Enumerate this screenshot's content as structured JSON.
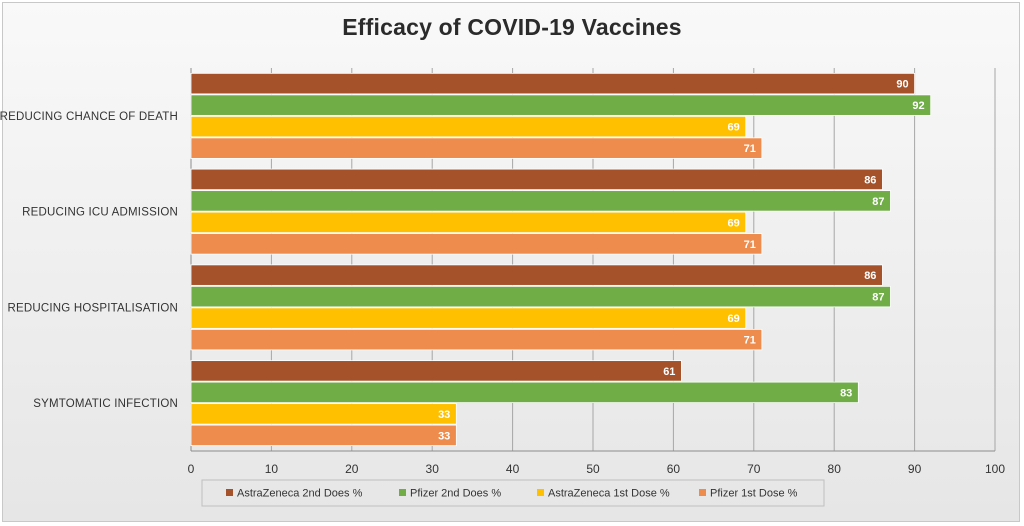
{
  "chart_data": {
    "type": "bar",
    "orientation": "horizontal",
    "title": "Efficacy of COVID-19 Vaccines",
    "xlabel": "",
    "ylabel": "",
    "categories": [
      "SYMTOMATIC INFECTION",
      "REDUCING HOSPITALISATION",
      "REDUCING ICU ADMISSION",
      "REDUCING CHANCE OF DEATH"
    ],
    "series": [
      {
        "name": "AstraZeneca 2nd Does  %",
        "color": "#a5522a",
        "values": [
          61,
          86,
          86,
          90
        ]
      },
      {
        "name": "Pfizer 2nd Does  %",
        "color": "#70ad47",
        "values": [
          83,
          87,
          87,
          92
        ]
      },
      {
        "name": "AstraZeneca 1st Dose %",
        "color": "#ffc000",
        "values": [
          33,
          69,
          69,
          69
        ]
      },
      {
        "name": "Pfizer 1st Dose %",
        "color": "#ed8c4d",
        "values": [
          33,
          71,
          71,
          71
        ]
      }
    ],
    "xlim": [
      0,
      100
    ],
    "xticks": [
      0,
      10,
      20,
      30,
      40,
      50,
      60,
      70,
      80,
      90,
      100
    ],
    "grid": true,
    "legend": "bottom",
    "data_labels": true
  }
}
